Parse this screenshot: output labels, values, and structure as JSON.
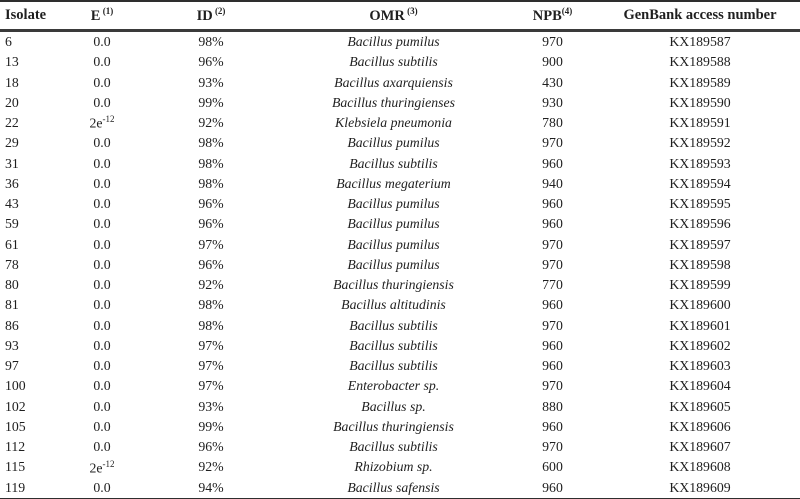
{
  "table": {
    "columns": [
      {
        "key": "isolate",
        "label": "Isolate",
        "sup": ""
      },
      {
        "key": "e",
        "label": "E",
        "sup": " (1)"
      },
      {
        "key": "id",
        "label": "ID",
        "sup": " (2)"
      },
      {
        "key": "omr",
        "label": "OMR",
        "sup": " (3)"
      },
      {
        "key": "npb",
        "label": "NPB",
        "sup": "(4)"
      },
      {
        "key": "genbank",
        "label": "GenBank access number",
        "sup": ""
      }
    ],
    "rows": [
      {
        "isolate": "6",
        "e": "0.0",
        "id": "98%",
        "omr": "Bacillus pumilus",
        "npb": "970",
        "genbank": "KX189587"
      },
      {
        "isolate": "13",
        "e": "0.0",
        "id": "96%",
        "omr": "Bacillus subtilis",
        "npb": "900",
        "genbank": "KX189588"
      },
      {
        "isolate": "18",
        "e": "0.0",
        "id": "93%",
        "omr": "Bacillus axarquiensis",
        "npb": "430",
        "genbank": "KX189589"
      },
      {
        "isolate": "20",
        "e": "0.0",
        "id": "99%",
        "omr": "Bacillus thuringienses",
        "npb": "930",
        "genbank": "KX189590"
      },
      {
        "isolate": "22",
        "e": "2e-12",
        "id": "92%",
        "omr": "Klebsiela pneumonia",
        "npb": "780",
        "genbank": "KX189591"
      },
      {
        "isolate": "29",
        "e": "0.0",
        "id": "98%",
        "omr": "Bacillus pumilus",
        "npb": "970",
        "genbank": "KX189592"
      },
      {
        "isolate": "31",
        "e": "0.0",
        "id": "98%",
        "omr": "Bacillus subtilis",
        "npb": "960",
        "genbank": "KX189593"
      },
      {
        "isolate": "36",
        "e": "0.0",
        "id": "98%",
        "omr": "Bacillus megaterium",
        "npb": "940",
        "genbank": "KX189594"
      },
      {
        "isolate": "43",
        "e": "0.0",
        "id": "96%",
        "omr": "Bacillus pumilus",
        "npb": "960",
        "genbank": "KX189595"
      },
      {
        "isolate": "59",
        "e": "0.0",
        "id": "96%",
        "omr": "Bacillus pumilus",
        "npb": "960",
        "genbank": "KX189596"
      },
      {
        "isolate": "61",
        "e": "0.0",
        "id": "97%",
        "omr": "Bacillus pumilus",
        "npb": "970",
        "genbank": "KX189597"
      },
      {
        "isolate": "78",
        "e": "0.0",
        "id": "96%",
        "omr": "Bacillus pumilus",
        "npb": "970",
        "genbank": "KX189598"
      },
      {
        "isolate": "80",
        "e": "0.0",
        "id": "92%",
        "omr": "Bacillus thuringiensis",
        "npb": "770",
        "genbank": "KX189599"
      },
      {
        "isolate": "81",
        "e": "0.0",
        "id": "98%",
        "omr": "Bacillus altitudinis",
        "npb": "960",
        "genbank": "KX189600"
      },
      {
        "isolate": "86",
        "e": "0.0",
        "id": "98%",
        "omr": "Bacillus subtilis",
        "npb": "970",
        "genbank": "KX189601"
      },
      {
        "isolate": "93",
        "e": "0.0",
        "id": "97%",
        "omr": "Bacillus subtilis",
        "npb": "960",
        "genbank": "KX189602"
      },
      {
        "isolate": "97",
        "e": "0.0",
        "id": "97%",
        "omr": "Bacillus subtilis",
        "npb": "960",
        "genbank": "KX189603"
      },
      {
        "isolate": "100",
        "e": "0.0",
        "id": "97%",
        "omr": "Enterobacter sp.",
        "npb": "970",
        "genbank": "KX189604"
      },
      {
        "isolate": "102",
        "e": "0.0",
        "id": "93%",
        "omr": "Bacillus sp.",
        "npb": "880",
        "genbank": "KX189605"
      },
      {
        "isolate": "105",
        "e": "0.0",
        "id": "99%",
        "omr": "Bacillus thuringiensis",
        "npb": "960",
        "genbank": "KX189606"
      },
      {
        "isolate": "112",
        "e": "0.0",
        "id": "96%",
        "omr": "Bacillus subtilis",
        "npb": "970",
        "genbank": "KX189607"
      },
      {
        "isolate": "115",
        "e": "2e-12",
        "id": "92%",
        "omr": "Rhizobium sp.",
        "npb": "600",
        "genbank": "KX189608"
      },
      {
        "isolate": "119",
        "e": "0.0",
        "id": "94%",
        "omr": "Bacillus safensis",
        "npb": "960",
        "genbank": "KX189609"
      }
    ]
  },
  "colors": {
    "text": "#1f1f1f",
    "rule": "#333333",
    "background": "#ffffff"
  }
}
